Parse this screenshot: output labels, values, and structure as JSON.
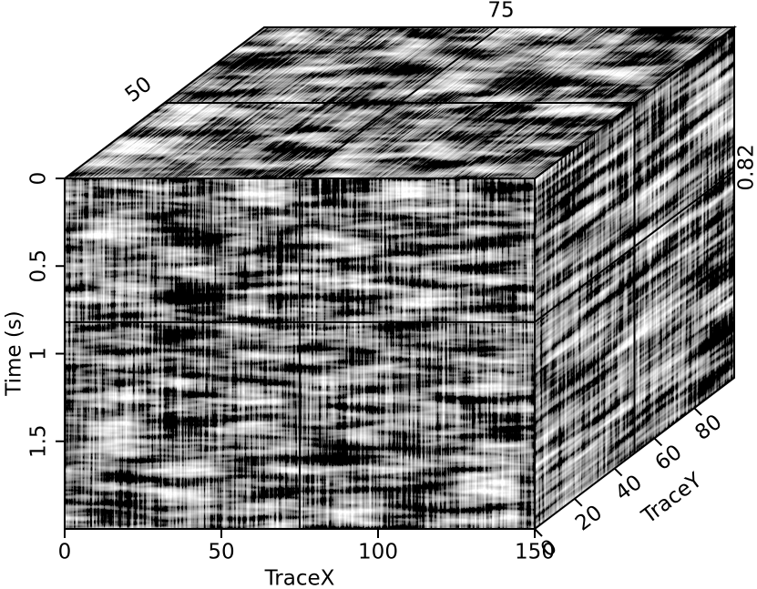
{
  "chart_data": {
    "type": "cube",
    "xlabel": "TraceX",
    "ylabel": "Time (s)",
    "zlabel": "TraceY",
    "xlim": [
      0,
      150
    ],
    "xticks": [
      0,
      50,
      100,
      150
    ],
    "ylim": [
      0,
      2
    ],
    "yticks": [
      0,
      0.5,
      1,
      1.5
    ],
    "zlim": [
      0,
      100
    ],
    "zticks": [
      0,
      20,
      40,
      60,
      80
    ],
    "slices": {
      "x": 75,
      "z": 50,
      "y": 0.82
    }
  }
}
